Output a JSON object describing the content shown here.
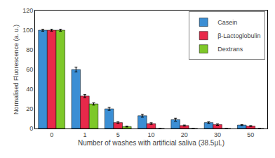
{
  "chart_data": {
    "type": "bar",
    "categories": [
      "0",
      "1",
      "5",
      "10",
      "20",
      "30",
      "50"
    ],
    "series": [
      {
        "name": "Casein",
        "color": "#3B8ED4",
        "values": [
          100,
          60,
          20,
          13,
          9,
          6,
          3.5
        ],
        "errors": [
          1.0,
          2.5,
          1.5,
          1.5,
          1.5,
          0.8,
          0.5
        ]
      },
      {
        "name": "β-Lactoglobulin",
        "color": "#E8294A",
        "values": [
          100,
          33,
          6,
          5,
          3,
          4,
          2.5
        ],
        "errors": [
          1.0,
          1.5,
          0.8,
          0.8,
          0.5,
          0.8,
          0.4
        ]
      },
      {
        "name": "Dextrans",
        "color": "#7EC829",
        "values": [
          100,
          25,
          2,
          0,
          0,
          0,
          0
        ],
        "errors": [
          1.0,
          1.2,
          0.5,
          0.0,
          0.0,
          0.0,
          0.0
        ]
      }
    ],
    "xlabel": "Number of washes with artificial saliva (38.5μL)",
    "ylabel": "Normalised Fluorescence (a. u.)",
    "ylim": [
      0,
      120
    ],
    "yticks": [
      0,
      20,
      40,
      60,
      80,
      100,
      120
    ],
    "grid": false,
    "legend": "upper right"
  }
}
